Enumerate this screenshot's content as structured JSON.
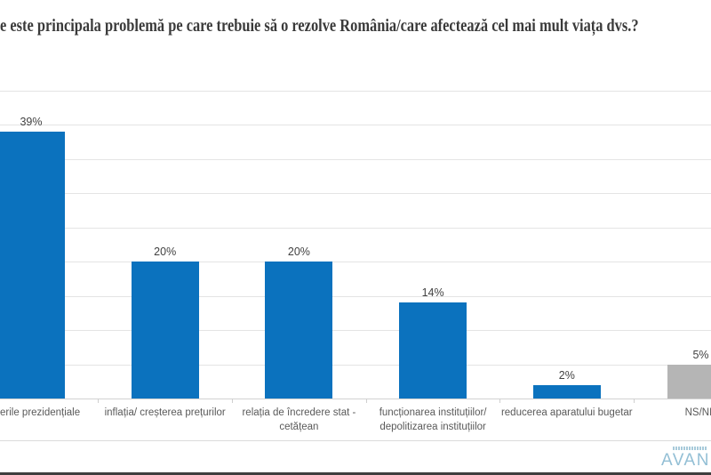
{
  "page": {
    "title": "e este principala problemă pe care trebuie să o rezolve România/care afectează cel mai mult viața dvs.?"
  },
  "chart_data": {
    "type": "bar",
    "title": "e este principala problemă pe care trebuie să o rezolve România/care afectează cel mai mult viața dvs.?",
    "categories": [
      "erile  prezidențiale",
      "inflația/ creșterea prețurilor",
      "relația de încredere stat -\ncetățean",
      "funcționarea instituțiilor/\ndepolitizarea instituțiilor",
      "reducerea aparatului bugetar",
      "NS/NR"
    ],
    "values": [
      39,
      20,
      20,
      14,
      2,
      5
    ],
    "data_labels": [
      "39%",
      "20%",
      "20%",
      "14%",
      "2%",
      "5%"
    ],
    "bar_colors": [
      "#0b72be",
      "#0b72be",
      "#0b72be",
      "#0b72be",
      "#0b72be",
      "#b5b5b5"
    ],
    "ylim": [
      0,
      45
    ],
    "gridline_step_pct": 5,
    "grid": true,
    "legend": false
  },
  "footer": {
    "logo_text": "AVAN"
  },
  "colors": {
    "bar_blue": "#0b72be",
    "bar_gray": "#b5b5b5",
    "gridline": "#e4e4e4",
    "value_label": "#414141",
    "category_label": "#595959",
    "title_text": "#3a3a3a",
    "logo_text": "#93bfd5",
    "bottom_border": "#3e3e3e"
  }
}
